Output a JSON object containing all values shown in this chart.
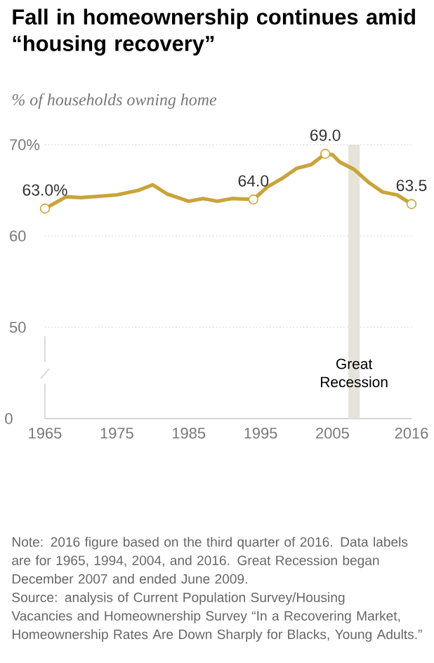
{
  "chart_data": {
    "type": "line",
    "title": "Fall in homeownership continues amid “housing recovery”",
    "subtitle": "% of households owning home",
    "x": [
      1965,
      1968,
      1970,
      1975,
      1978,
      1980,
      1982,
      1985,
      1987,
      1989,
      1991,
      1994,
      1996,
      1998,
      2000,
      2002,
      2004,
      2005,
      2006,
      2008,
      2010,
      2012,
      2014,
      2016
    ],
    "series": [
      {
        "color": "#c9a43a",
        "values": [
          63.0,
          64.3,
          64.2,
          64.5,
          65.0,
          65.6,
          64.6,
          63.8,
          64.1,
          63.8,
          64.1,
          64.0,
          65.4,
          66.3,
          67.4,
          67.8,
          69.0,
          68.9,
          68.1,
          67.3,
          65.9,
          64.8,
          64.5,
          63.5
        ],
        "value_labels": [
          "63.0%",
          null,
          null,
          null,
          null,
          null,
          null,
          null,
          null,
          null,
          null,
          "64.0",
          null,
          null,
          null,
          null,
          "69.0",
          null,
          null,
          null,
          null,
          null,
          null,
          "63.5"
        ]
      }
    ],
    "xlim": [
      1965,
      2016
    ],
    "xticks": [
      1965,
      1975,
      1985,
      1995,
      2005,
      2016
    ],
    "ylim": [
      40,
      70
    ],
    "yticks": [
      50,
      60,
      {
        "value": 70,
        "label": "70%"
      }
    ],
    "grid": "y",
    "bands": [
      {
        "axis": "x",
        "from": 2007.2,
        "to": 2008.8,
        "label": "Great Recession",
        "color": "#e6e4da"
      }
    ],
    "annotations": [
      "0",
      "Note: 2016 figure based on the third quarter of 2016. Data labels are for 1965, 1994, 2004, and 2016. Great Recession began December 2007 and ended June 2009.",
      "Source: analysis of Current Population Survey/Housing Vacancies and Homeownership Survey “In a Recovering Market, Homeownership Rates Are Down Sharply for Blacks, Young Adults.”"
    ]
  }
}
